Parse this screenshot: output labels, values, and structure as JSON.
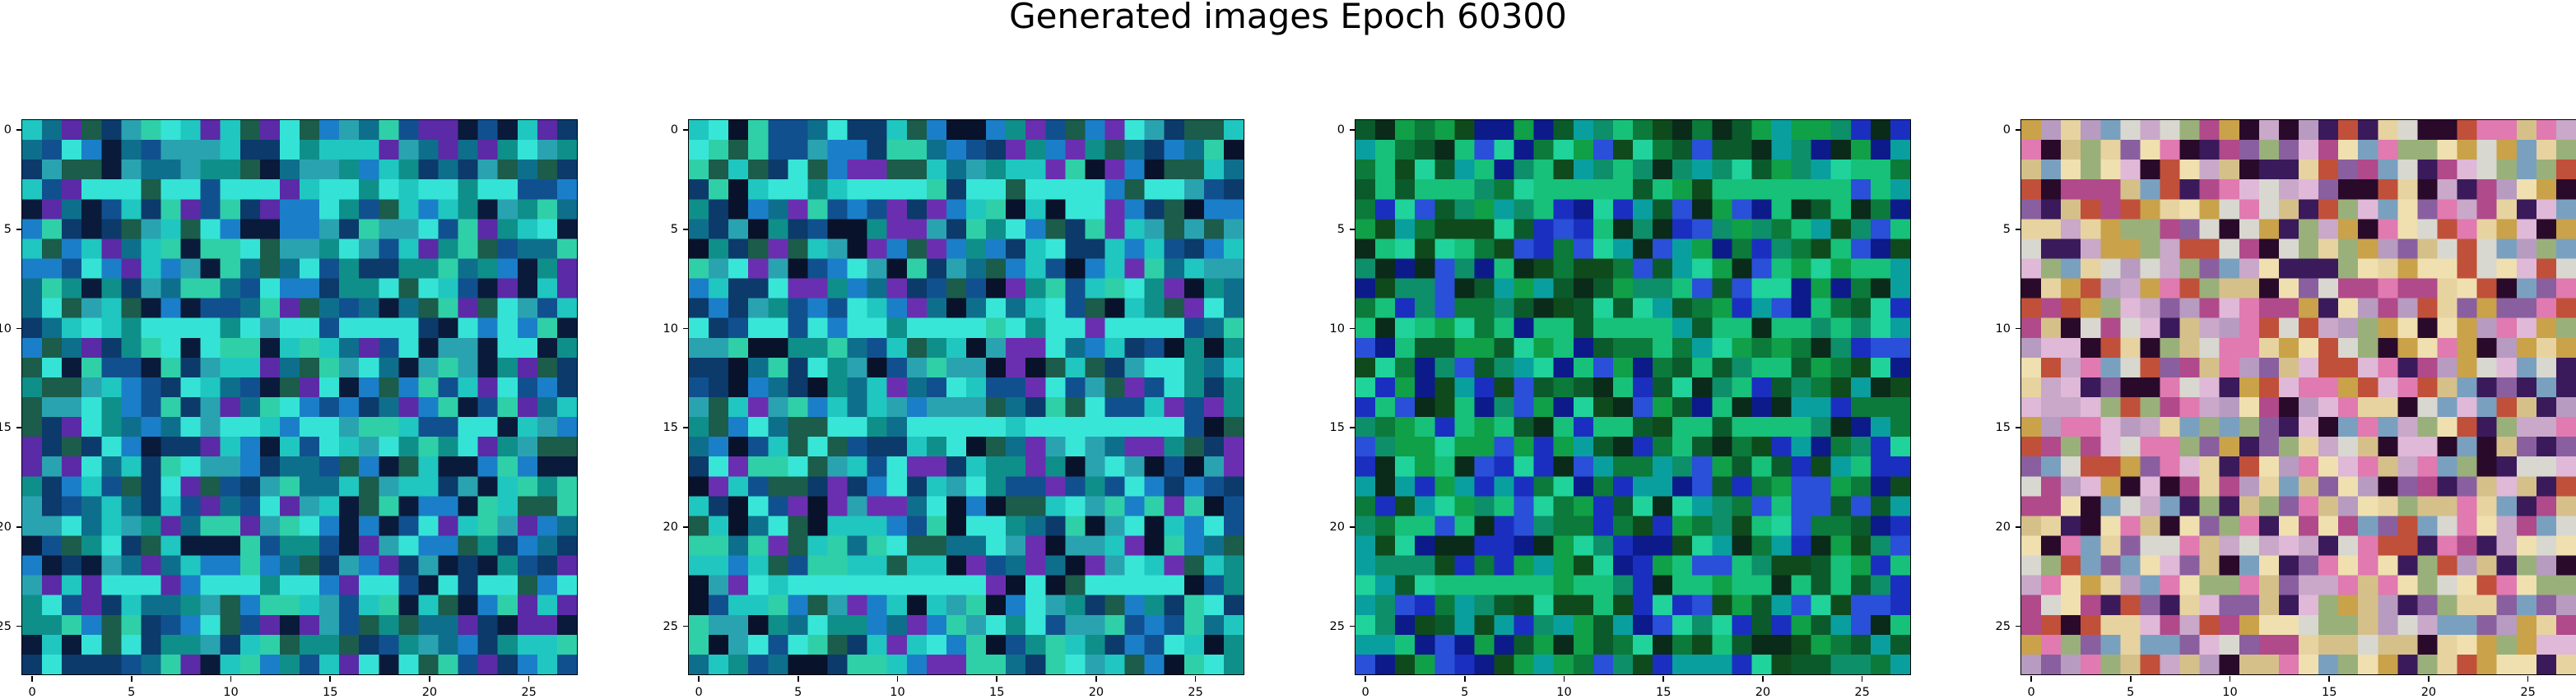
{
  "figure": {
    "title": "Generated images Epoch 60300"
  },
  "chart_data": [
    {
      "type": "heatmap",
      "description_of_mode": "28x28 RGB generated image",
      "grid_size": [
        28,
        28
      ],
      "xticks": [
        "0",
        "5",
        "10",
        "15",
        "20",
        "25"
      ],
      "yticks": [
        "0",
        "5",
        "10",
        "15",
        "20",
        "25"
      ],
      "xlim": [
        -0.5,
        27.5
      ],
      "ylim": [
        27.5,
        -0.5
      ],
      "palette": [
        "#0f8f8a",
        "#1fc7c0",
        "#2aa3b0",
        "#0e6f8c",
        "#11508f",
        "#1a7fc8",
        "#35e3d6",
        "#0b3a6b",
        "#5b2aa6",
        "#1b5c4a",
        "#2fd0a8",
        "#0a1a3a"
      ]
    },
    {
      "type": "heatmap",
      "description_of_mode": "28x28 RGB generated image",
      "grid_size": [
        28,
        28
      ],
      "xticks": [
        "0",
        "5",
        "10",
        "15",
        "20",
        "25"
      ],
      "yticks": [
        "0",
        "5",
        "10",
        "15",
        "20",
        "25"
      ],
      "xlim": [
        -0.5,
        27.5
      ],
      "ylim": [
        27.5,
        -0.5
      ],
      "palette": [
        "#0f8f8a",
        "#1fc7c0",
        "#2aa3b0",
        "#0e6f8c",
        "#11508f",
        "#1a7fc8",
        "#38e6d8",
        "#0b3a6b",
        "#6a2fb0",
        "#1b5c4a",
        "#2fd0a8",
        "#08122a"
      ]
    },
    {
      "type": "heatmap",
      "description_of_mode": "28x28 RGB generated image",
      "grid_size": [
        28,
        28
      ],
      "xticks": [
        "0",
        "5",
        "10",
        "15",
        "20",
        "25"
      ],
      "yticks": [
        "0",
        "5",
        "10",
        "15",
        "20",
        "25"
      ],
      "xlim": [
        -0.5,
        27.5
      ],
      "ylim": [
        27.5,
        -0.5
      ],
      "palette": [
        "#0b7a3a",
        "#10a048",
        "#0a5a2c",
        "#0d8f6a",
        "#17c17a",
        "#0e4a1c",
        "#1a2fc0",
        "#0c1a8a",
        "#1fd39a",
        "#0a9f9f",
        "#0a2a1a",
        "#2a4fd8"
      ]
    },
    {
      "type": "heatmap",
      "description_of_mode": "28x28 RGB generated image",
      "grid_size": [
        28,
        28
      ],
      "xticks": [
        "0",
        "5",
        "10",
        "15",
        "20",
        "25"
      ],
      "yticks": [
        "0",
        "5",
        "10",
        "15",
        "20",
        "25"
      ],
      "xlim": [
        -0.5,
        27.5
      ],
      "ylim": [
        27.5,
        -0.5
      ],
      "palette": [
        "#c9a8c9",
        "#e0b8d8",
        "#b89bc0",
        "#d6c08a",
        "#c9a24a",
        "#e7d3a0",
        "#8a5fa0",
        "#3a1a5a",
        "#b04a8a",
        "#d8d8d0",
        "#9ab07a",
        "#c0503a",
        "#f0e0b0",
        "#2a0a2a",
        "#7aa0c0",
        "#e07ab0"
      ]
    }
  ]
}
